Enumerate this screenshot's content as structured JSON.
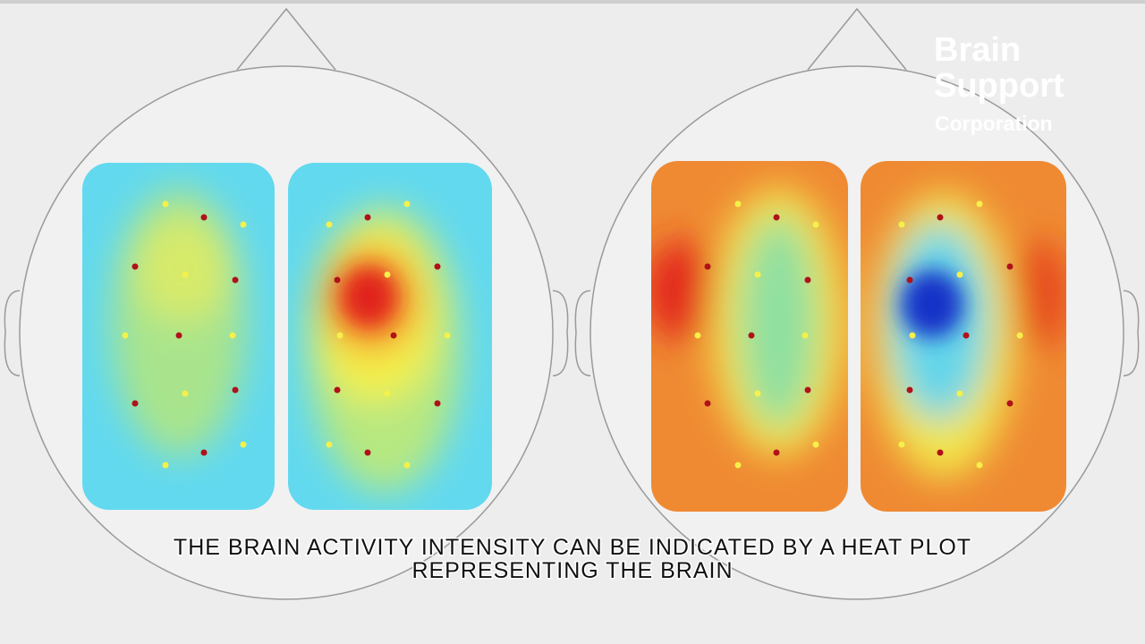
{
  "logo": {
    "line1": "Brain",
    "line2": "Support",
    "line3": "Corporation"
  },
  "caption": {
    "line1": "THE BRAIN ACTIVITY INTENSITY CAN BE INDICATED BY A HEAT PLOT",
    "line2": "REPRESENTING THE BRAIN"
  }
}
